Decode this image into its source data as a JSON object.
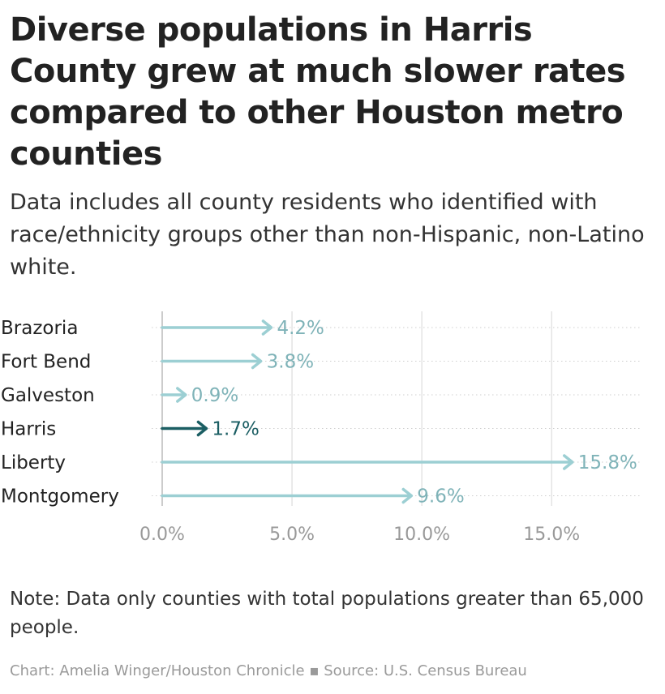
{
  "header": {
    "title": "Diverse populations in Harris County grew at much slower rates compared to other Houston metro counties",
    "subtitle": "Data includes all county residents who identified with race/ethnicity groups other than non-Hispanic, non-Latino white."
  },
  "footer": {
    "note": "Note: Data only counties with total populations greater than 65,000 people.",
    "credit": "Chart: Amelia Winger/Houston Chronicle ▪ Source: U.S. Census Bureau"
  },
  "colors": {
    "default_arrow": "#9ccfd3",
    "highlight_arrow": "#1b5e63",
    "grid": "#d6d6d6"
  },
  "chart_data": {
    "type": "bar",
    "style": "arrow",
    "categories": [
      "Brazoria",
      "Fort Bend",
      "Galveston",
      "Harris",
      "Liberty",
      "Montgomery"
    ],
    "values": [
      4.2,
      3.8,
      0.9,
      1.7,
      15.8,
      9.6
    ],
    "value_labels": [
      "4.2%",
      "3.8%",
      "0.9%",
      "1.7%",
      "15.8%",
      "9.6%"
    ],
    "highlight": "Harris",
    "xlim": [
      0,
      18.4
    ],
    "ticks": [
      0,
      5,
      10,
      15
    ],
    "tick_labels": [
      "0.0%",
      "5.0%",
      "10.0%",
      "15.0%"
    ],
    "grid": true
  }
}
